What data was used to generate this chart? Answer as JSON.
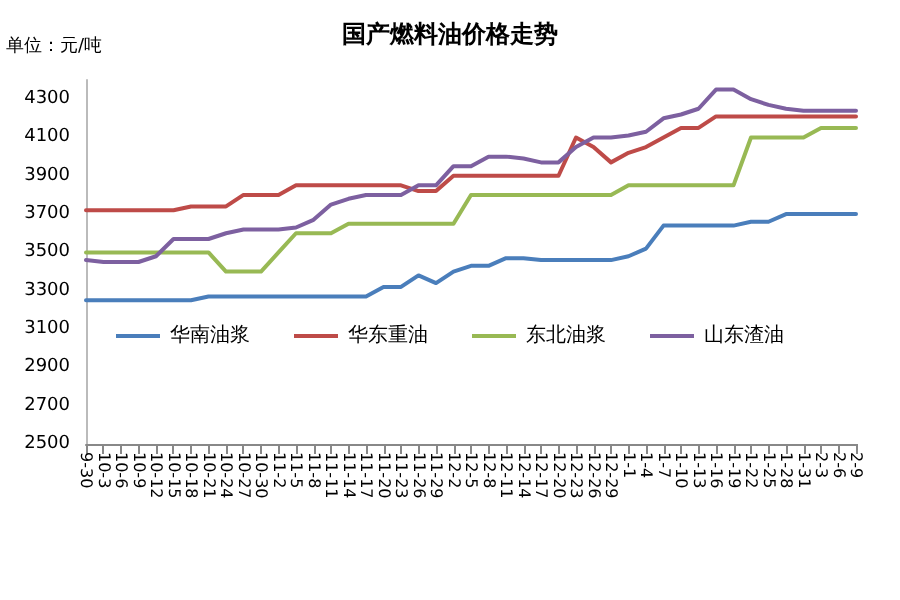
{
  "chart_data": {
    "type": "line",
    "title": "国产燃料油价格走势",
    "ylabel": "单位：元/吨",
    "categories": [
      "9-30",
      "10-3",
      "10-6",
      "10-9",
      "10-12",
      "10-15",
      "10-18",
      "10-21",
      "10-24",
      "10-27",
      "10-30",
      "11-2",
      "11-5",
      "11-8",
      "11-11",
      "11-14",
      "11-17",
      "11-20",
      "11-23",
      "11-26",
      "11-29",
      "12-2",
      "12-5",
      "12-8",
      "12-11",
      "12-14",
      "12-17",
      "12-20",
      "12-23",
      "12-26",
      "12-29",
      "1-1",
      "1-4",
      "1-7",
      "1-10",
      "1-13",
      "1-16",
      "1-19",
      "1-22",
      "1-25",
      "1-28",
      "1-31",
      "2-3",
      "2-6",
      "2-9"
    ],
    "series": [
      {
        "name": "华南油浆",
        "color": "#4a7ebb",
        "values": [
          3250,
          3250,
          3250,
          3250,
          3250,
          3250,
          3250,
          3270,
          3270,
          3270,
          3270,
          3270,
          3270,
          3270,
          3270,
          3270,
          3270,
          3320,
          3320,
          3380,
          3340,
          3400,
          3430,
          3430,
          3470,
          3470,
          3460,
          3460,
          3460,
          3460,
          3460,
          3480,
          3520,
          3640,
          3640,
          3640,
          3640,
          3640,
          3660,
          3660,
          3700,
          3700,
          3700,
          3700,
          3700
        ]
      },
      {
        "name": "华东重油",
        "color": "#be4b48",
        "values": [
          3720,
          3720,
          3720,
          3720,
          3720,
          3720,
          3740,
          3740,
          3740,
          3800,
          3800,
          3800,
          3850,
          3850,
          3850,
          3850,
          3850,
          3850,
          3850,
          3820,
          3820,
          3900,
          3900,
          3900,
          3900,
          3900,
          3900,
          3900,
          4100,
          4050,
          3970,
          4020,
          4050,
          4100,
          4150,
          4150,
          4210,
          4210,
          4210,
          4210,
          4210,
          4210,
          4210,
          4210,
          4210
        ]
      },
      {
        "name": "东北油浆",
        "color": "#98b954",
        "values": [
          3500,
          3500,
          3500,
          3500,
          3500,
          3500,
          3500,
          3500,
          3400,
          3400,
          3400,
          3500,
          3600,
          3600,
          3600,
          3650,
          3650,
          3650,
          3650,
          3650,
          3650,
          3650,
          3800,
          3800,
          3800,
          3800,
          3800,
          3800,
          3800,
          3800,
          3800,
          3850,
          3850,
          3850,
          3850,
          3850,
          3850,
          3850,
          4100,
          4100,
          4100,
          4100,
          4150,
          4150,
          4150
        ]
      },
      {
        "name": "山东渣油",
        "color": "#7d60a0",
        "values": [
          3460,
          3450,
          3450,
          3450,
          3480,
          3570,
          3570,
          3570,
          3600,
          3620,
          3620,
          3620,
          3630,
          3670,
          3750,
          3780,
          3800,
          3800,
          3800,
          3850,
          3850,
          3950,
          3950,
          4000,
          4000,
          3990,
          3970,
          3970,
          4050,
          4100,
          4100,
          4110,
          4130,
          4200,
          4220,
          4250,
          4350,
          4350,
          4300,
          4270,
          4250,
          4240,
          4240,
          4240,
          4240
        ]
      }
    ],
    "ylim": [
      2500,
      4400
    ],
    "yticks": [
      2500,
      2700,
      2900,
      3100,
      3300,
      3500,
      3700,
      3900,
      4100,
      4300
    ],
    "legend": "center",
    "marker": "none",
    "line_style": "solid",
    "grid": false
  }
}
